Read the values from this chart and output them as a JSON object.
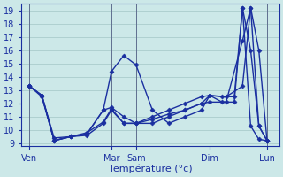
{
  "background_color": "#cce8e8",
  "grid_color": "#aacccc",
  "line_color": "#1a2fa0",
  "marker": "D",
  "marker_size": 2.5,
  "line_width": 1.0,
  "xlabel": "Température (°c)",
  "xlabel_fontsize": 8,
  "tick_fontsize": 7,
  "ylim": [
    8.8,
    19.5
  ],
  "yticks": [
    9,
    10,
    11,
    12,
    13,
    14,
    15,
    16,
    17,
    18,
    19
  ],
  "xtick_labels": [
    "Ven",
    "Mar",
    "Sam",
    "Dim",
    "Lun"
  ],
  "xtick_positions": [
    0,
    100,
    130,
    220,
    290
  ],
  "vline_positions": [
    0,
    100,
    130,
    220,
    290
  ],
  "xlim": [
    -10,
    305
  ],
  "lines": [
    {
      "x": [
        0,
        15,
        30,
        50,
        70,
        90,
        100,
        115,
        130,
        150,
        170,
        190,
        210,
        220,
        235,
        250,
        260,
        270,
        280,
        290
      ],
      "y": [
        13.3,
        12.6,
        9.2,
        9.5,
        9.7,
        11.5,
        11.7,
        11.0,
        10.5,
        11.0,
        11.5,
        12.0,
        12.5,
        12.6,
        12.1,
        12.1,
        19.2,
        10.3,
        9.3,
        9.2
      ]
    },
    {
      "x": [
        0,
        15,
        30,
        50,
        70,
        90,
        100,
        115,
        130,
        150,
        170,
        190,
        210,
        220,
        235,
        250,
        260,
        270,
        280,
        290
      ],
      "y": [
        13.3,
        12.6,
        9.2,
        9.5,
        9.7,
        11.5,
        14.4,
        15.6,
        14.9,
        11.5,
        10.5,
        11.0,
        11.5,
        12.6,
        12.5,
        12.5,
        19.2,
        16.0,
        10.3,
        9.2
      ]
    },
    {
      "x": [
        0,
        15,
        30,
        50,
        70,
        90,
        100,
        115,
        130,
        150,
        170,
        190,
        210,
        220,
        240,
        260,
        270,
        280,
        290
      ],
      "y": [
        13.3,
        12.5,
        9.2,
        9.5,
        9.8,
        10.6,
        11.6,
        10.5,
        10.5,
        10.8,
        11.2,
        11.5,
        12.0,
        12.1,
        12.1,
        16.7,
        19.2,
        10.3,
        9.2
      ]
    },
    {
      "x": [
        0,
        15,
        30,
        50,
        70,
        90,
        100,
        115,
        130,
        150,
        170,
        190,
        210,
        220,
        240,
        260,
        270,
        280,
        290
      ],
      "y": [
        13.3,
        12.6,
        9.4,
        9.5,
        9.6,
        10.5,
        11.5,
        10.5,
        10.5,
        10.5,
        11.0,
        11.5,
        12.0,
        12.6,
        12.5,
        13.3,
        19.2,
        16.0,
        9.2
      ]
    }
  ]
}
